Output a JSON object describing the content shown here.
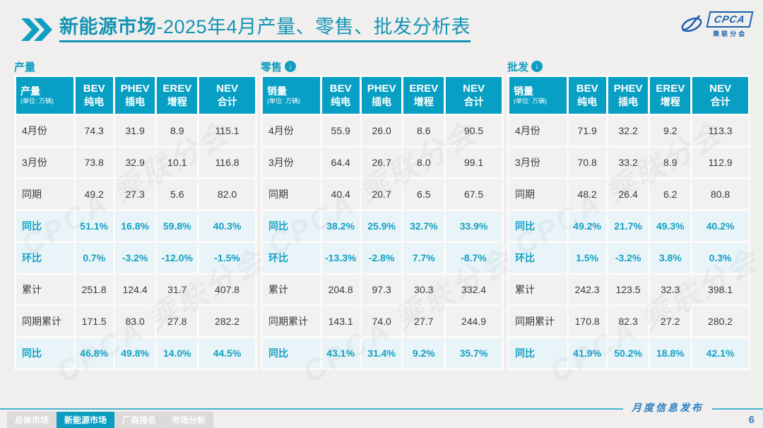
{
  "header": {
    "title_bold": "新能源市场",
    "title_rest": "-2025年4月产量、零售、批发分析表",
    "logo_name": "CPCA",
    "logo_sub": "乘联分会"
  },
  "watermark": "CPCA 乘联分会",
  "colors": {
    "teal": "#0a9fc2",
    "header_bg": "#079fc4",
    "highlight_row_bg": "#e8f4f8",
    "row_bg": "#f2f1ef",
    "logo_blue": "#1b5fae",
    "footer_blue": "#2b80c4"
  },
  "tables": [
    {
      "id": "production",
      "section_label": "产量",
      "arrow_icon": false,
      "corner_title": "产量",
      "corner_unit": "(单位: 万辆)",
      "columns": [
        {
          "en": "BEV",
          "zh": "纯电"
        },
        {
          "en": "PHEV",
          "zh": "插电"
        },
        {
          "en": "EREV",
          "zh": "增程"
        },
        {
          "en": "NEV",
          "zh": "合计"
        }
      ],
      "rows": [
        {
          "label": "4月份",
          "values": [
            "74.3",
            "31.9",
            "8.9",
            "115.1"
          ],
          "highlight": false
        },
        {
          "label": "3月份",
          "values": [
            "73.8",
            "32.9",
            "10.1",
            "116.8"
          ],
          "highlight": false
        },
        {
          "label": "同期",
          "values": [
            "49.2",
            "27.3",
            "5.6",
            "82.0"
          ],
          "highlight": false
        },
        {
          "label": "同比",
          "values": [
            "51.1%",
            "16.8%",
            "59.8%",
            "40.3%"
          ],
          "highlight": true
        },
        {
          "label": "环比",
          "values": [
            "0.7%",
            "-3.2%",
            "-12.0%",
            "-1.5%"
          ],
          "highlight": true
        },
        {
          "label": "累计",
          "values": [
            "251.8",
            "124.4",
            "31.7",
            "407.8"
          ],
          "highlight": false
        },
        {
          "label": "同期累计",
          "values": [
            "171.5",
            "83.0",
            "27.8",
            "282.2"
          ],
          "highlight": false
        },
        {
          "label": "同比",
          "values": [
            "46.8%",
            "49.8%",
            "14.0%",
            "44.5%"
          ],
          "highlight": true
        }
      ]
    },
    {
      "id": "retail",
      "section_label": "零售",
      "arrow_icon": true,
      "corner_title": "销量",
      "corner_unit": "(单位: 万辆)",
      "columns": [
        {
          "en": "BEV",
          "zh": "纯电"
        },
        {
          "en": "PHEV",
          "zh": "插电"
        },
        {
          "en": "EREV",
          "zh": "增程"
        },
        {
          "en": "NEV",
          "zh": "合计"
        }
      ],
      "rows": [
        {
          "label": "4月份",
          "values": [
            "55.9",
            "26.0",
            "8.6",
            "90.5"
          ],
          "highlight": false
        },
        {
          "label": "3月份",
          "values": [
            "64.4",
            "26.7",
            "8.0",
            "99.1"
          ],
          "highlight": false
        },
        {
          "label": "同期",
          "values": [
            "40.4",
            "20.7",
            "6.5",
            "67.5"
          ],
          "highlight": false
        },
        {
          "label": "同比",
          "values": [
            "38.2%",
            "25.9%",
            "32.7%",
            "33.9%"
          ],
          "highlight": true
        },
        {
          "label": "环比",
          "values": [
            "-13.3%",
            "-2.8%",
            "7.7%",
            "-8.7%"
          ],
          "highlight": true
        },
        {
          "label": "累计",
          "values": [
            "204.8",
            "97.3",
            "30.3",
            "332.4"
          ],
          "highlight": false
        },
        {
          "label": "同期累计",
          "values": [
            "143.1",
            "74.0",
            "27.7",
            "244.9"
          ],
          "highlight": false
        },
        {
          "label": "同比",
          "values": [
            "43.1%",
            "31.4%",
            "9.2%",
            "35.7%"
          ],
          "highlight": true
        }
      ]
    },
    {
      "id": "wholesale",
      "section_label": "批发",
      "arrow_icon": true,
      "corner_title": "销量",
      "corner_unit": "(单位: 万辆)",
      "columns": [
        {
          "en": "BEV",
          "zh": "纯电"
        },
        {
          "en": "PHEV",
          "zh": "插电"
        },
        {
          "en": "EREV",
          "zh": "增程"
        },
        {
          "en": "NEV",
          "zh": "合计"
        }
      ],
      "rows": [
        {
          "label": "4月份",
          "values": [
            "71.9",
            "32.2",
            "9.2",
            "113.3"
          ],
          "highlight": false
        },
        {
          "label": "3月份",
          "values": [
            "70.8",
            "33.2",
            "8.9",
            "112.9"
          ],
          "highlight": false
        },
        {
          "label": "同期",
          "values": [
            "48.2",
            "26.4",
            "6.2",
            "80.8"
          ],
          "highlight": false
        },
        {
          "label": "同比",
          "values": [
            "49.2%",
            "21.7%",
            "49.3%",
            "40.2%"
          ],
          "highlight": true
        },
        {
          "label": "环比",
          "values": [
            "1.5%",
            "-3.2%",
            "3.8%",
            "0.3%"
          ],
          "highlight": true
        },
        {
          "label": "累计",
          "values": [
            "242.3",
            "123.5",
            "32.3",
            "398.1"
          ],
          "highlight": false
        },
        {
          "label": "同期累计",
          "values": [
            "170.8",
            "82.3",
            "27.2",
            "280.2"
          ],
          "highlight": false
        },
        {
          "label": "同比",
          "values": [
            "41.9%",
            "50.2%",
            "18.8%",
            "42.1%"
          ],
          "highlight": true
        }
      ]
    }
  ],
  "footer": {
    "tabs": [
      {
        "id": "overall-market",
        "label": "总体市场",
        "active": false
      },
      {
        "id": "nev-market",
        "label": "新能源市场",
        "active": true
      },
      {
        "id": "manufacturer-ranking",
        "label": "厂商排名",
        "active": false
      },
      {
        "id": "market-analysis",
        "label": "市场分析",
        "active": false
      }
    ],
    "publication": "月度信息发布",
    "page_number": "6"
  }
}
